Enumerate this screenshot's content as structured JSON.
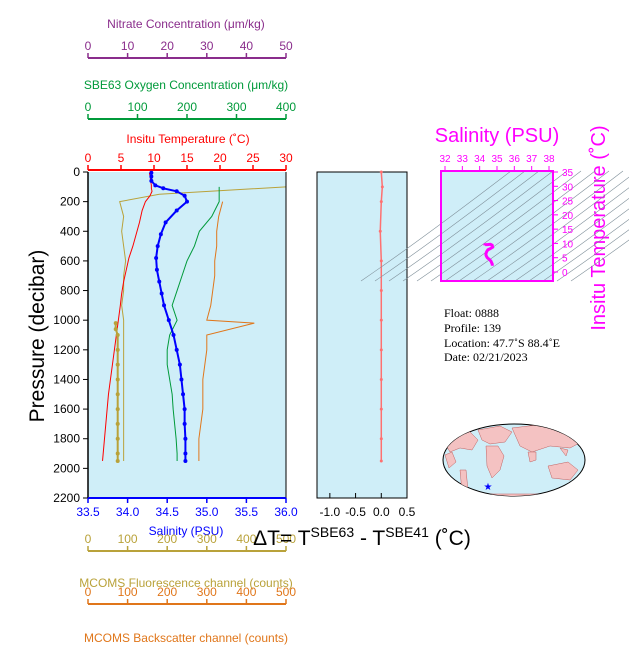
{
  "colors": {
    "panel_bg": "#cfeef8",
    "temperature": "#ff0000",
    "salinity": "#0000ff",
    "oxygen": "#009a3a",
    "nitrate": "#8a2d8c",
    "fluorescence": "#b9a23a",
    "backscatter": "#e0761a",
    "magenta": "#ff00ff",
    "delta": "#ff7070"
  },
  "axes": {
    "nitrate": {
      "label": "Nitrate Concentration (μm/kg)",
      "ticks": [
        "0",
        "10",
        "20",
        "30",
        "40",
        "50"
      ],
      "range": [
        0,
        50
      ]
    },
    "oxygen": {
      "label": "SBE63 Oxygen Concentration (μm/kg)",
      "ticks": [
        "0",
        "100",
        "200",
        "300",
        "400"
      ],
      "range": [
        0,
        400
      ]
    },
    "temperature": {
      "label": "Insitu Temperature (˚C)",
      "ticks": [
        "0",
        "5",
        "10",
        "15",
        "20",
        "25",
        "30"
      ],
      "range": [
        0,
        30
      ]
    },
    "pressure": {
      "label": "Pressure (decibar)",
      "ticks": [
        "0",
        "200",
        "400",
        "600",
        "800",
        "1000",
        "1200",
        "1400",
        "1600",
        "1800",
        "2000",
        "2200"
      ],
      "range": [
        0,
        2200
      ]
    },
    "salinity": {
      "label": "Salinity (PSU)",
      "ticks": [
        "33.5",
        "34.0",
        "34.5",
        "35.0",
        "35.5",
        "36.0"
      ],
      "range": [
        33.5,
        36.0
      ]
    },
    "fluorescence": {
      "label": "MCOMS Fluorescence channel (counts)",
      "ticks": [
        "0",
        "100",
        "200",
        "300",
        "400",
        "500"
      ],
      "range": [
        0,
        500
      ]
    },
    "backscatter": {
      "label": "MCOMS Backscatter channel (counts)",
      "ticks": [
        "0",
        "100",
        "200",
        "300",
        "400",
        "500"
      ],
      "range": [
        0,
        500
      ]
    },
    "delta": {
      "label_prefix": "ΔT= T",
      "sup1": "SBE63",
      "label_mid": " - T",
      "sup2": "SBE41",
      "label_unit": " (˚C)",
      "ticks": [
        "-1.0",
        "-0.5",
        "0.0",
        "0.5"
      ],
      "range": [
        -1.25,
        0.5
      ]
    }
  },
  "ts_diagram": {
    "title": "Salinity (PSU)",
    "ylabel": "Insitu Temperature (˚C)",
    "sal_ticks": [
      "32",
      "33",
      "34",
      "35",
      "36",
      "37",
      "38"
    ],
    "temp_ticks": [
      "0",
      "5",
      "10",
      "15",
      "20",
      "25",
      "30",
      "35"
    ]
  },
  "info": {
    "float": "Float:  0888",
    "profile": "Profile:  139",
    "location": "Location:  47.7˚S  88.4˚E",
    "date": "Date:  02/21/2023"
  },
  "chart_data": {
    "type": "line",
    "pressure_axis": "inverted, 0-2200 decibar",
    "series": [
      {
        "name": "Insitu Temperature",
        "unit": "˚C",
        "pressure": [
          5,
          30,
          60,
          90,
          110,
          130,
          160,
          200,
          260,
          340,
          420,
          500,
          580,
          660,
          740,
          820,
          900,
          1000,
          1100,
          1200,
          1300,
          1400,
          1500,
          1600,
          1700,
          1800,
          1900,
          1950
        ],
        "values": [
          9.3,
          9.4,
          9.5,
          9.6,
          9.6,
          9.7,
          9.4,
          8.7,
          8.2,
          7.8,
          7.3,
          6.8,
          6.2,
          5.8,
          5.4,
          5.1,
          4.9,
          4.6,
          4.3,
          4.0,
          3.7,
          3.4,
          3.1,
          2.9,
          2.7,
          2.5,
          2.3,
          2.2
        ]
      },
      {
        "name": "Salinity",
        "unit": "PSU",
        "pressure": [
          5,
          30,
          60,
          90,
          110,
          130,
          160,
          200,
          260,
          340,
          420,
          500,
          580,
          660,
          740,
          820,
          900,
          1000,
          1100,
          1200,
          1300,
          1400,
          1500,
          1600,
          1700,
          1800,
          1900,
          1950
        ],
        "values": [
          34.3,
          34.3,
          34.3,
          34.35,
          34.45,
          34.62,
          34.72,
          34.75,
          34.62,
          34.48,
          34.42,
          34.38,
          34.36,
          34.37,
          34.4,
          34.43,
          34.46,
          34.52,
          34.58,
          34.62,
          34.66,
          34.68,
          34.7,
          34.72,
          34.72,
          34.73,
          34.73,
          34.73
        ]
      },
      {
        "name": "SBE63 Oxygen Concentration",
        "unit": "μm/kg",
        "pressure": [
          100,
          200,
          300,
          400,
          500,
          600,
          700,
          800,
          900,
          1000,
          1100,
          1200,
          1300,
          1400,
          1500,
          1600,
          1700,
          1800,
          1900,
          1950
        ],
        "values": [
          265,
          265,
          250,
          225,
          215,
          200,
          190,
          180,
          170,
          180,
          165,
          160,
          160,
          165,
          170,
          172,
          175,
          178,
          180,
          180
        ]
      },
      {
        "name": "Nitrate Concentration",
        "unit": "μm/kg",
        "pressure": [
          1020,
          1060,
          1100,
          1200,
          1300,
          1400,
          1500,
          1600,
          1700,
          1800,
          1900,
          1950
        ],
        "values": [
          7,
          7,
          7.5,
          7.5,
          7.5,
          7.5,
          7.5,
          7.5,
          7.5,
          7.5,
          7.5,
          7.5
        ]
      },
      {
        "name": "MCOMS Fluorescence channel",
        "unit": "counts",
        "pressure": [
          100,
          150,
          200,
          300,
          400,
          500,
          600,
          700,
          800,
          900,
          1000,
          1100,
          1200,
          1400,
          1600,
          1800,
          1950
        ],
        "values": [
          500,
          180,
          80,
          90,
          85,
          90,
          95,
          90,
          90,
          85,
          90,
          90,
          90,
          90,
          90,
          90,
          90
        ]
      },
      {
        "name": "MCOMS Backscatter channel",
        "unit": "counts",
        "pressure": [
          200,
          300,
          400,
          500,
          600,
          700,
          800,
          900,
          1000,
          1020,
          1100,
          1200,
          1300,
          1400,
          1500,
          1600,
          1700,
          1800,
          1900,
          1950
        ],
        "values": [
          340,
          330,
          325,
          325,
          320,
          320,
          315,
          310,
          300,
          420,
          300,
          300,
          295,
          290,
          290,
          290,
          285,
          280,
          280,
          280
        ]
      },
      {
        "name": "Delta T",
        "unit": "˚C",
        "pressure": [
          0,
          100,
          200,
          400,
          600,
          800,
          1000,
          1200,
          1400,
          1600,
          1800,
          1950
        ],
        "values": [
          0.0,
          0.02,
          0.0,
          -0.02,
          0.0,
          0.0,
          0.0,
          0.0,
          0.0,
          0.0,
          0.0,
          0.0
        ]
      }
    ]
  }
}
